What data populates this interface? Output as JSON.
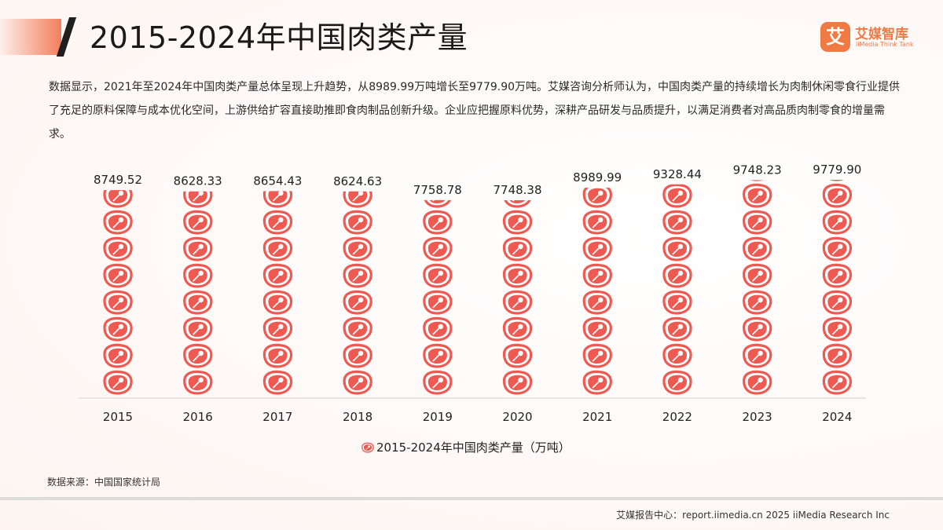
{
  "header": {
    "title": "2015-2024年中国肉类产量",
    "logo_mark": "艾",
    "logo_cn": "艾媒智库",
    "logo_en": "iiMedia Think Tank"
  },
  "summary": "数据显示，2021年至2024年中国肉类产量总体呈现上升趋势，从8989.99万吨增长至9779.90万吨。艾媒咨询分析师认为，中国肉类产量的持续增长为肉制休闲零食行业提供了充足的原料保障与成本优化空间，上游供给扩容直接助推即食肉制品创新升级。企业应把握原料优势，深耕产品研发与品质提升，以满足消费者对高品质肉制零食的增量需求。",
  "chart_data": {
    "type": "bar",
    "style": "pictograph",
    "icon": "steak-icon",
    "icon_color": "#ee5a52",
    "categories": [
      "2015",
      "2016",
      "2017",
      "2018",
      "2019",
      "2020",
      "2021",
      "2022",
      "2023",
      "2024"
    ],
    "values": [
      8749.52,
      8628.33,
      8654.43,
      8624.63,
      7758.78,
      7748.38,
      8989.99,
      9328.44,
      9748.23,
      9779.9
    ],
    "value_labels": [
      "8749.52",
      "8628.33",
      "8654.43",
      "8624.63",
      "7758.78",
      "7748.38",
      "8989.99",
      "9328.44",
      "9748.23",
      "9779.90"
    ],
    "legend": "2015-2024年中国肉类产量（万吨）",
    "legend_position": "bottom-center",
    "grid": false
  },
  "source": "数据来源：中国国家统计局",
  "footer": "艾媒报告中心：report.iimedia.cn  2025 iiMedia Research Inc"
}
